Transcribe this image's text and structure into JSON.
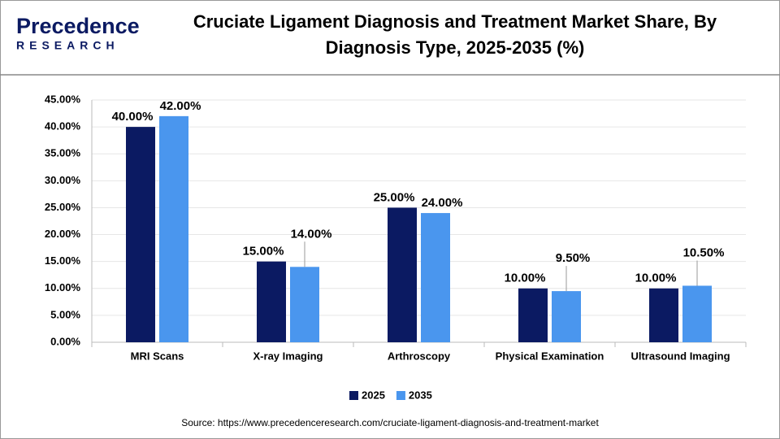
{
  "logo": {
    "name": "Precedence",
    "sub": "RESEARCH"
  },
  "chart_data": {
    "type": "bar",
    "title": [
      "Cruciate Ligament Diagnosis and Treatment Market Share, By",
      "Diagnosis Type, 2025-2035 (%)"
    ],
    "categories": [
      "MRI Scans",
      "X-ray Imaging",
      "Arthroscopy",
      "Physical Examination",
      "Ultrasound Imaging"
    ],
    "series": [
      {
        "name": "2025",
        "color": "#0b1a62",
        "values": [
          40,
          15,
          25,
          10,
          10
        ],
        "value_labels": [
          "40.00%",
          "15.00%",
          "25.00%",
          "10.00%",
          "10.00%"
        ]
      },
      {
        "name": "2035",
        "color": "#4a96ee",
        "values": [
          42,
          14,
          24,
          9.5,
          10.5
        ],
        "value_labels": [
          "42.00%",
          "14.00%",
          "24.00%",
          "9.50%",
          "10.50%"
        ]
      }
    ],
    "ylim": [
      0,
      45
    ],
    "yticks": [
      {
        "value": 0,
        "label": "0.00%"
      },
      {
        "value": 5,
        "label": "5.00%"
      },
      {
        "value": 10,
        "label": "10.00%"
      },
      {
        "value": 15,
        "label": "15.00%"
      },
      {
        "value": 20,
        "label": "20.00%"
      },
      {
        "value": 25,
        "label": "25.00%"
      },
      {
        "value": 30,
        "label": "30.00%"
      },
      {
        "value": 35,
        "label": "35.00%"
      },
      {
        "value": 40,
        "label": "40.00%"
      },
      {
        "value": 45,
        "label": "45.00%"
      }
    ],
    "grid": true,
    "legend": "bottom",
    "source": "Source: https://www.precedenceresearch.com/cruciate-ligament-diagnosis-and-treatment-market"
  }
}
